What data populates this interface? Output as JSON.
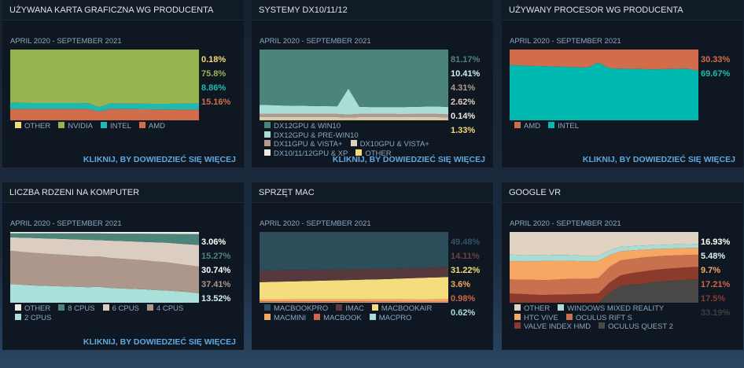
{
  "link_label": "KLIKNIJ, BY DOWIEDZIEĆ SIĘ WIĘCEJ",
  "chart_data": [
    {
      "type": "area",
      "stacked": true,
      "title": "UŻYWANA KARTA GRAFICZNA WG PRODUCENTA",
      "subtitle": "APRIL 2020 - SEPTEMBER 2021",
      "ylim": [
        0,
        100
      ],
      "legend": "bottom",
      "has_link": true,
      "series": [
        {
          "name": "OTHER",
          "color": "#f5d878",
          "label": "0.18%",
          "label_color": "#f5d878",
          "values": [
            0.2,
            0.2,
            0.2,
            0.2,
            0.2,
            0.2,
            0.2,
            0.2,
            0.2,
            0.2,
            0.2,
            0.2,
            0.2,
            0.2,
            0.2,
            0.2,
            0.2,
            0.18
          ]
        },
        {
          "name": "NVIDIA",
          "color": "#97b451",
          "label": "75.8%",
          "label_color": "#97b451",
          "values": [
            74.8,
            75.2,
            75.3,
            75.3,
            75.4,
            75.4,
            75.3,
            75.5,
            81.3,
            76.1,
            76.1,
            76.2,
            76.3,
            76.4,
            76.4,
            76.3,
            76.1,
            75.8
          ]
        },
        {
          "name": "INTEL",
          "color": "#1cbab2",
          "label": "8.86%",
          "label_color": "#1cbab2",
          "values": [
            9,
            8.6,
            8.5,
            8.5,
            8.4,
            8.4,
            8.5,
            8.3,
            6,
            7.7,
            7.7,
            7.8,
            7.9,
            8,
            8.1,
            8.3,
            8.5,
            8.86
          ]
        },
        {
          "name": "AMD",
          "color": "#d16d4b",
          "label": "15.16%",
          "label_color": "#d16d4b",
          "values": [
            16,
            16,
            16,
            16,
            16,
            16,
            16,
            16,
            12.5,
            16,
            16,
            15.8,
            15.6,
            15.4,
            15.3,
            15.2,
            15.2,
            15.16
          ]
        }
      ]
    },
    {
      "type": "area",
      "stacked": true,
      "title": "SYSTEMY DX10/11/12",
      "subtitle": "APRIL 2020 - SEPTEMBER 2021",
      "ylim": [
        0,
        100
      ],
      "legend": "bottom",
      "has_link": true,
      "series": [
        {
          "name": "DX12GPU & WIN10",
          "color": "#4b8579",
          "label": "81.17%",
          "label_color": "#4b8579",
          "values": [
            78,
            78.5,
            79,
            79.3,
            79.5,
            79.8,
            80,
            80.2,
            55,
            81,
            81.2,
            81.2,
            81.3,
            81.3,
            81,
            80.5,
            80.4,
            81.17
          ]
        },
        {
          "name": "DX12GPU & PRE-WIN10",
          "color": "#a9ddd5",
          "label": "10.41%",
          "label_color": "#d7f0ec",
          "values": [
            13,
            12.5,
            12,
            11.7,
            11.5,
            11.2,
            11,
            10.8,
            37,
            10,
            9.8,
            9.8,
            9.7,
            9.8,
            10,
            10.5,
            10.6,
            10.41
          ]
        },
        {
          "name": "DX11GPU & VISTA+",
          "color": "#b29b8e",
          "label": "4.31%",
          "label_color": "#b29b8e",
          "values": [
            4.6,
            4.6,
            4.6,
            4.6,
            4.6,
            4.6,
            4.6,
            4.6,
            4.2,
            4.6,
            4.6,
            4.6,
            4.6,
            4.5,
            4.6,
            4.6,
            4.6,
            4.31
          ]
        },
        {
          "name": "DX10GPU & VISTA+",
          "color": "#dbcfc0",
          "label": "2.62%",
          "label_color": "#dbcfc0",
          "values": [
            2.8,
            2.8,
            2.8,
            2.8,
            2.8,
            2.8,
            2.8,
            2.8,
            2.4,
            2.8,
            2.8,
            2.8,
            2.8,
            2.8,
            2.8,
            2.8,
            2.8,
            2.62
          ]
        },
        {
          "name": "DX10/11/12GPU & XP",
          "color": "#efe9e4",
          "label": "0.14%",
          "label_color": "#efe9e4",
          "values": [
            0.2,
            0.2,
            0.2,
            0.2,
            0.2,
            0.2,
            0.2,
            0.2,
            0.2,
            0.2,
            0.2,
            0.2,
            0.2,
            0.2,
            0.2,
            0.2,
            0.2,
            0.14
          ]
        },
        {
          "name": "OTHER",
          "color": "#f5d878",
          "label": "1.33%",
          "label_color": "#f5d878",
          "values": [
            1.4,
            1.4,
            1.4,
            1.4,
            1.4,
            1.4,
            1.4,
            1.4,
            1.2,
            1.4,
            1.4,
            1.4,
            1.4,
            1.4,
            1.4,
            1.4,
            1.4,
            1.33
          ]
        }
      ]
    },
    {
      "type": "area",
      "stacked": true,
      "title": "UŻYWANY PROCESOR WG PRODUCENTA",
      "subtitle": "APRIL 2020 - SEPTEMBER 2021",
      "ylim": [
        0,
        100
      ],
      "legend": "bottom",
      "has_link": true,
      "series": [
        {
          "name": "AMD",
          "color": "#d16d4b",
          "label": "30.33%",
          "label_color": "#d16d4b",
          "values": [
            22,
            22.5,
            23,
            23.5,
            24,
            24.5,
            25,
            25.5,
            18.5,
            26.5,
            27,
            27.3,
            27.6,
            28,
            27.6,
            27.2,
            27,
            30.33
          ]
        },
        {
          "name": "INTEL",
          "color": "#00b9b1",
          "label": "69.67%",
          "label_color": "#1cbab2",
          "values": [
            78,
            77.5,
            77,
            76.5,
            76,
            75.5,
            75,
            74.5,
            81.5,
            73.5,
            73,
            72.7,
            72.4,
            72,
            72.4,
            72.8,
            73,
            69.67
          ]
        }
      ]
    },
    {
      "type": "area",
      "stacked": true,
      "title": "LICZBA RDZENI NA KOMPUTER",
      "subtitle": "APRIL 2020 - SEPTEMBER 2021",
      "ylim": [
        0,
        100
      ],
      "legend": "bottom",
      "has_link": true,
      "series": [
        {
          "name": "OTHER",
          "color": "#efeae6",
          "label": "3.06%",
          "label_color": "#ffffff",
          "values": [
            2,
            2,
            2,
            2,
            2,
            2,
            2,
            2,
            2,
            2.2,
            2.3,
            2.4,
            2.5,
            2.6,
            2.7,
            2.8,
            2.9,
            3.06
          ]
        },
        {
          "name": "8 CPUS",
          "color": "#4b8579",
          "label": "15.27%",
          "label_color": "#4b8579",
          "values": [
            5.5,
            6,
            6.5,
            7,
            7.5,
            8,
            8.5,
            9,
            9.5,
            10,
            10.5,
            11,
            11.5,
            12,
            12.5,
            13.5,
            14.5,
            15.27
          ]
        },
        {
          "name": "6 CPUS",
          "color": "#dbcdc2",
          "label": "30.74%",
          "label_color": "#ffffff",
          "values": [
            19,
            20,
            21,
            21.5,
            22,
            22.5,
            23,
            23.5,
            23,
            24.5,
            25,
            25.5,
            26,
            27,
            27.5,
            28.5,
            29.5,
            30.74
          ]
        },
        {
          "name": "4 CPUS",
          "color": "#ad978a",
          "label": "37.41%",
          "label_color": "#ad978a",
          "values": [
            47,
            46.5,
            46,
            45.5,
            45,
            44.5,
            44,
            43.5,
            43,
            42.5,
            42,
            41.5,
            41,
            40.5,
            40,
            39,
            38,
            37.41
          ]
        },
        {
          "name": "2 CPUS",
          "color": "#a9e0da",
          "label": "13.52%",
          "label_color": "#d7f0ec",
          "values": [
            26.5,
            25.5,
            24.5,
            24,
            23.5,
            23,
            22.5,
            22,
            22.5,
            20.8,
            20.2,
            19.6,
            19,
            17.9,
            17.3,
            16.2,
            15.1,
            13.52
          ]
        }
      ]
    },
    {
      "type": "area",
      "stacked": true,
      "title": "SPRZĘT MAC",
      "subtitle": "APRIL 2020 - SEPTEMBER 2021",
      "ylim": [
        0,
        100
      ],
      "legend": "bottom",
      "has_link": false,
      "series": [
        {
          "name": "MACBOOKPRO",
          "color": "#2b4e5a",
          "label": "49.48%",
          "label_color": "#2f5563",
          "values": [
            54,
            54,
            53.8,
            53.6,
            53.4,
            53.2,
            53,
            52.8,
            52.6,
            52.4,
            52.2,
            52,
            51.6,
            51.2,
            50.8,
            50.4,
            50,
            49.48
          ]
        },
        {
          "name": "IMAC",
          "color": "#56393c",
          "label": "14.11%",
          "label_color": "#6a4245",
          "values": [
            17,
            16.6,
            16.4,
            16.2,
            16,
            15.8,
            15.6,
            15.4,
            15.2,
            15,
            14.8,
            14.7,
            14.6,
            14.5,
            14.4,
            14.3,
            14.2,
            14.11
          ]
        },
        {
          "name": "MACBOOKAIR",
          "color": "#f5dc7d",
          "label": "31.22%",
          "label_color": "#f5dc7d",
          "values": [
            24,
            24.4,
            24.8,
            25.2,
            25.6,
            26,
            26.4,
            26.8,
            27.2,
            27.6,
            28,
            28.4,
            28.9,
            29.4,
            29.9,
            30.4,
            30.8,
            31.22
          ]
        },
        {
          "name": "MACMINI",
          "color": "#f5a763",
          "label": "3.6%",
          "label_color": "#f5a763",
          "values": [
            3,
            3,
            3,
            3,
            3,
            3,
            3,
            3,
            3,
            3,
            3,
            3,
            3.1,
            3.2,
            3.3,
            3.4,
            3.5,
            3.6
          ]
        },
        {
          "name": "MACBOOK",
          "color": "#d2644a",
          "label": "0.98%",
          "label_color": "#d2644a",
          "values": [
            1.4,
            1.4,
            1.4,
            1.3,
            1.3,
            1.3,
            1.3,
            1.3,
            1.3,
            1.3,
            1.2,
            1.2,
            1.2,
            1.1,
            1.1,
            1,
            1,
            0.98
          ]
        },
        {
          "name": "MACPRO",
          "color": "#a9ddd5",
          "label": "0.62%",
          "label_color": "#a9ddd5",
          "values": [
            0.6,
            0.6,
            0.6,
            0.6,
            0.6,
            0.6,
            0.6,
            0.6,
            0.6,
            0.6,
            0.6,
            0.6,
            0.6,
            0.6,
            0.6,
            0.6,
            0.6,
            0.62
          ]
        }
      ]
    },
    {
      "type": "area",
      "stacked": true,
      "title": "GOOGLE VR",
      "subtitle": "APRIL 2020 - SEPTEMBER 2021",
      "ylim": [
        0,
        100
      ],
      "legend": "bottom",
      "has_link": false,
      "series": [
        {
          "name": "OTHER",
          "color": "#e0d3c2",
          "label": "16.93%",
          "label_color": "#ffffff",
          "values": [
            32,
            32.5,
            33,
            33,
            32.5,
            32.5,
            33,
            34,
            34,
            26,
            21,
            20,
            19,
            18.5,
            18,
            17.5,
            17.2,
            16.93
          ]
        },
        {
          "name": "WINDOWS MIXED REALITY",
          "color": "#a8ddd6",
          "label": "5.48%",
          "label_color": "#d7f0ec",
          "values": [
            9,
            9,
            8.5,
            8,
            8,
            8,
            8,
            7.5,
            7,
            6.5,
            6.2,
            6,
            5.8,
            5.7,
            5.6,
            5.5,
            5.5,
            5.48
          ]
        },
        {
          "name": "HTC VIVE",
          "color": "#f5a763",
          "label": "9.7%",
          "label_color": "#f5a763",
          "values": [
            26,
            26,
            26,
            27,
            27,
            26,
            25,
            25,
            24,
            17,
            13,
            12,
            11,
            10.5,
            10,
            10,
            9.8,
            9.7
          ]
        },
        {
          "name": "OCULUS RIFT S",
          "color": "#c9714e",
          "label": "17.21%",
          "label_color": "#d2644a",
          "values": [
            20,
            20,
            21,
            21,
            21,
            22,
            22,
            21,
            22,
            22,
            21,
            20,
            19.5,
            19,
            18.5,
            18,
            17.5,
            17.21
          ]
        },
        {
          "name": "VALVE INDEX HMD",
          "color": "#8b3a2b",
          "label": "17.5%",
          "label_color": "#8b3a2b",
          "values": [
            13,
            12.5,
            11.5,
            11,
            11.5,
            11.5,
            12,
            12.5,
            13,
            14,
            15,
            16.5,
            17,
            17.3,
            17.4,
            17.5,
            17.5,
            17.5
          ]
        },
        {
          "name": "OCULUS QUEST 2",
          "color": "#4a4747",
          "label": "33.19%",
          "label_color": "#3e3e3e",
          "values": [
            0,
            0,
            0,
            0,
            0,
            0,
            0,
            0,
            0,
            14.5,
            23.8,
            25.5,
            26.7,
            29,
            30.5,
            31.5,
            32.5,
            33.19
          ]
        }
      ]
    }
  ]
}
